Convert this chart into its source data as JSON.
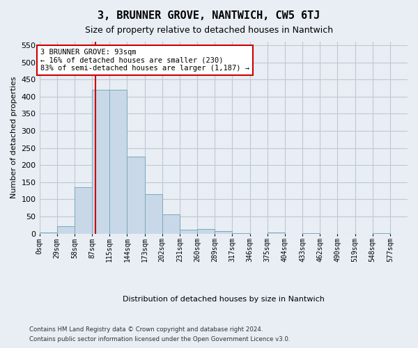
{
  "title": "3, BRUNNER GROVE, NANTWICH, CW5 6TJ",
  "subtitle": "Size of property relative to detached houses in Nantwich",
  "xlabel": "Distribution of detached houses by size in Nantwich",
  "ylabel": "Number of detached properties",
  "bin_labels": [
    "0sqm",
    "29sqm",
    "58sqm",
    "87sqm",
    "115sqm",
    "144sqm",
    "173sqm",
    "202sqm",
    "231sqm",
    "260sqm",
    "289sqm",
    "317sqm",
    "346sqm",
    "375sqm",
    "404sqm",
    "433sqm",
    "462sqm",
    "490sqm",
    "519sqm",
    "548sqm",
    "577sqm"
  ],
  "bar_values": [
    3,
    22,
    135,
    420,
    420,
    225,
    115,
    57,
    12,
    14,
    7,
    1,
    0,
    3,
    0,
    2,
    0,
    0,
    0,
    1,
    0
  ],
  "bar_color": "#c8d8e8",
  "bar_edgecolor": "#7aaabb",
  "grid_color": "#c0c8d0",
  "background_color": "#e8eef4",
  "vline_x": 93,
  "vline_color": "#cc0000",
  "annotation_text": "3 BRUNNER GROVE: 93sqm\n← 16% of detached houses are smaller (230)\n83% of semi-detached houses are larger (1,187) →",
  "annotation_box_color": "#ffffff",
  "annotation_box_edgecolor": "#cc0000",
  "ylim": [
    0,
    560
  ],
  "yticks": [
    0,
    50,
    100,
    150,
    200,
    250,
    300,
    350,
    400,
    450,
    500,
    550
  ],
  "bin_width": 29,
  "footer_line1": "Contains HM Land Registry data © Crown copyright and database right 2024.",
  "footer_line2": "Contains public sector information licensed under the Open Government Licence v3.0."
}
